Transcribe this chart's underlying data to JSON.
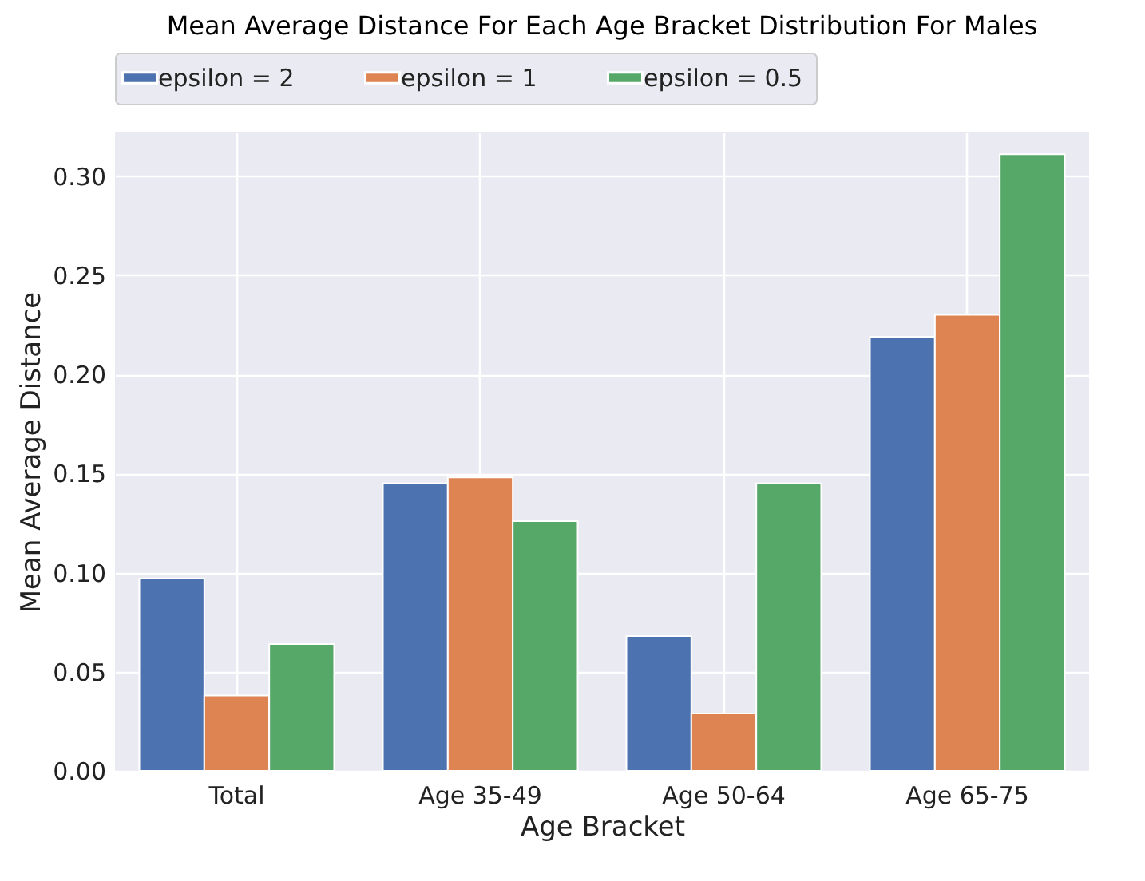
{
  "chart_data": {
    "type": "bar",
    "title": "Mean Average Distance For Each Age Bracket Distribution For Males",
    "xlabel": "Age Bracket",
    "ylabel": "Mean Average Distance",
    "categories": [
      "Total",
      "Age 35-49",
      "Age 50-64",
      "Age 65-75"
    ],
    "series": [
      {
        "name": "epsilon = 2",
        "color": "#4c72b0",
        "values": [
          0.097,
          0.145,
          0.068,
          0.219
        ]
      },
      {
        "name": "epsilon = 1",
        "color": "#dd8452",
        "values": [
          0.038,
          0.148,
          0.029,
          0.23
        ]
      },
      {
        "name": "epsilon = 0.5",
        "color": "#55a868",
        "values": [
          0.064,
          0.126,
          0.145,
          0.311
        ]
      }
    ],
    "ylim": [
      0,
      0.322
    ],
    "yticks": [
      {
        "value": 0,
        "label": "0.00"
      },
      {
        "value": 0.05,
        "label": "0.05"
      },
      {
        "value": 0.1,
        "label": "0.10"
      },
      {
        "value": 0.15,
        "label": "0.15"
      },
      {
        "value": 0.2,
        "label": "0.20"
      },
      {
        "value": 0.25,
        "label": "0.25"
      },
      {
        "value": 0.3,
        "label": "0.30"
      }
    ],
    "grid": true,
    "legend": "top"
  }
}
